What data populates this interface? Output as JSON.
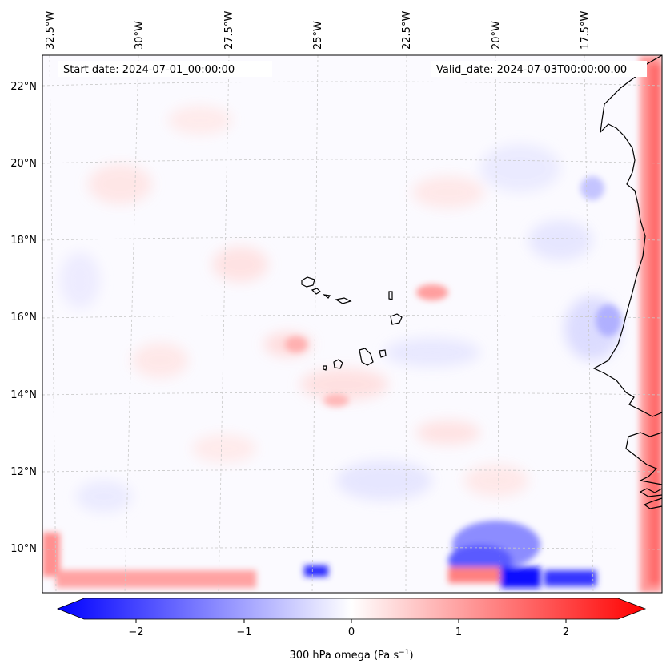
{
  "header": {
    "start_date": "Start date: 2024-07-01_00:00:00",
    "valid_date": "Valid_date: 2024-07-03T00:00:00.00"
  },
  "map": {
    "lon_labels": [
      "32.5°W",
      "30°W",
      "27.5°W",
      "25°W",
      "22.5°W",
      "20°W",
      "17.5°W"
    ],
    "lat_labels": [
      "22°N",
      "20°N",
      "18°N",
      "16°N",
      "14°N",
      "12°N",
      "10°N"
    ],
    "gridlines": true,
    "field_name": "300 hPa omega"
  },
  "colorbar": {
    "ticks": [
      "−2",
      "−1",
      "0",
      "1",
      "2"
    ],
    "label": "300 hPa omega (Pa s",
    "label_sup": "−1",
    "label_end": ")",
    "range": [
      -2.6,
      2.6
    ],
    "min_color": "#0000ff",
    "mid_color": "#ffffff",
    "max_color": "#ff0000"
  }
}
